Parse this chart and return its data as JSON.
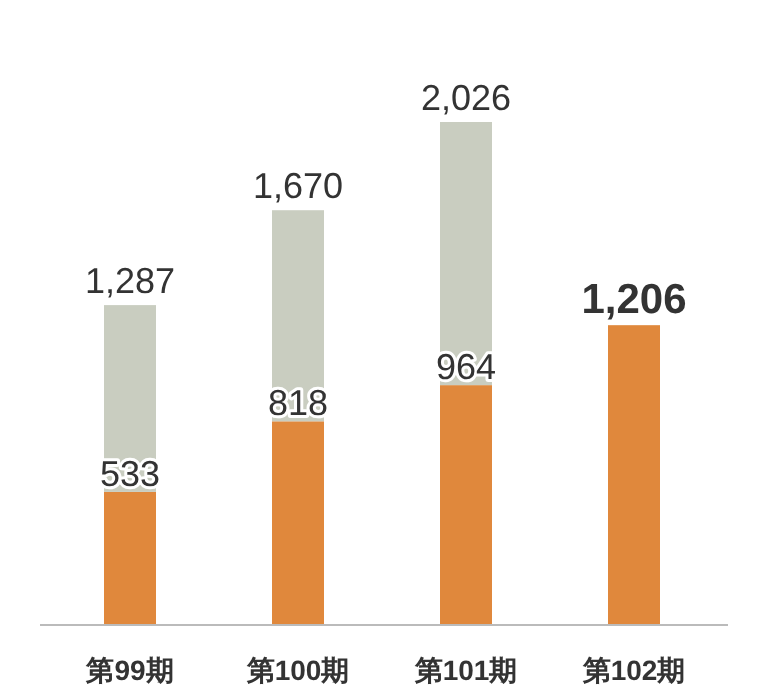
{
  "chart_data": {
    "type": "bar",
    "stacked": true,
    "categories": [
      "第99期",
      "第100期",
      "第101期",
      "第102期"
    ],
    "series": [
      {
        "color": "#e0883c",
        "values": [
          533,
          818,
          964,
          1206
        ],
        "value_labels": [
          "533",
          "818",
          "964",
          "1,206"
        ]
      },
      {
        "color": "#c9cdc0",
        "values": [
          754,
          852,
          1062,
          null
        ]
      }
    ],
    "totals": [
      "1,287",
      "1,670",
      "2,026",
      null
    ]
  }
}
